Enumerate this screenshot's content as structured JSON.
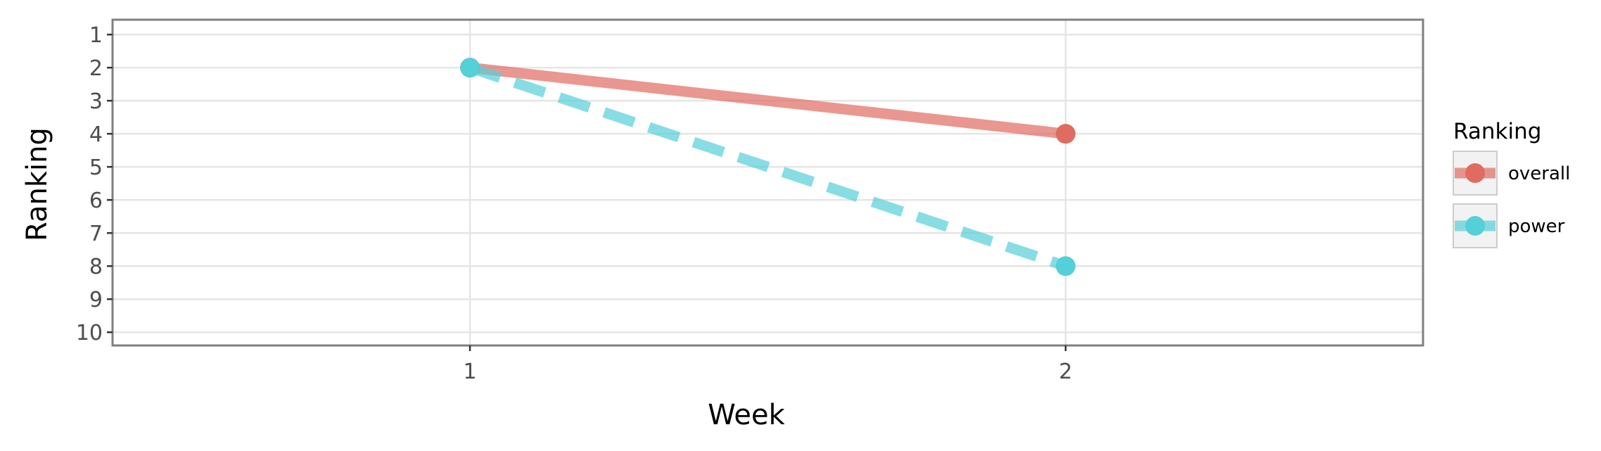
{
  "chart_data": {
    "type": "line",
    "title": "",
    "xlabel": "Week",
    "ylabel": "Ranking",
    "x": [
      1,
      2
    ],
    "x_ticks": [
      "1",
      "2"
    ],
    "y_ticks": [
      "1",
      "2",
      "3",
      "4",
      "5",
      "6",
      "7",
      "8",
      "9",
      "10"
    ],
    "xlim": [
      0.4,
      2.6
    ],
    "ylim": [
      10.4,
      0.55
    ],
    "y_reversed": true,
    "grid": true,
    "legend": {
      "title": "Ranking",
      "placement": "right"
    },
    "series": [
      {
        "name": "overall",
        "values": [
          2,
          4
        ],
        "color": "#e06b61",
        "line_style": "solid"
      },
      {
        "name": "power",
        "values": [
          2,
          8
        ],
        "color": "#55cfd8",
        "line_style": "dashed"
      }
    ]
  }
}
